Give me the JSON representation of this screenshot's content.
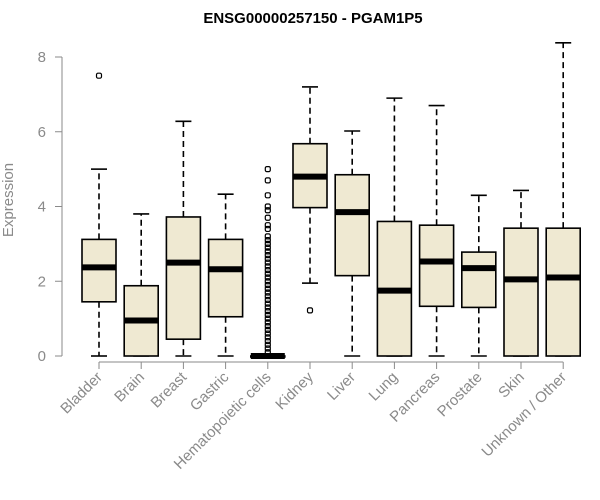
{
  "chart_data": {
    "type": "boxplot",
    "title": "ENSG00000257150 - PGAM1P5",
    "xlabel": "",
    "ylabel": "Expression",
    "ylim": [
      0,
      8.4
    ],
    "yticks": [
      0,
      2,
      4,
      6,
      8
    ],
    "box_color": "#efe9d2",
    "categories": [
      "Bladder",
      "Brain",
      "Breast",
      "Gastric",
      "Hematopoietic cells",
      "Kidney",
      "Liver",
      "Lung",
      "Pancreas",
      "Prostate",
      "Skin",
      "Unknown / Other"
    ],
    "boxes": [
      {
        "min": 0.0,
        "q1": 1.45,
        "median": 2.37,
        "q3": 3.12,
        "max": 5.0,
        "outliers": [
          7.5
        ]
      },
      {
        "min": 0.0,
        "q1": 0.0,
        "median": 0.95,
        "q3": 1.88,
        "max": 3.8,
        "outliers": []
      },
      {
        "min": 0.0,
        "q1": 0.45,
        "median": 2.5,
        "q3": 3.72,
        "max": 6.28,
        "outliers": []
      },
      {
        "min": 0.0,
        "q1": 1.05,
        "median": 2.32,
        "q3": 3.12,
        "max": 4.33,
        "outliers": []
      },
      {
        "min": 0.0,
        "q1": 0.0,
        "median": 0.0,
        "q3": 0.0,
        "max": 0.0,
        "outliers": [
          5.0,
          4.7,
          4.3,
          4.0,
          3.9,
          3.7,
          3.5,
          3.4,
          3.2,
          3.1,
          3.0,
          2.9,
          2.8,
          2.7,
          2.6,
          2.5,
          2.4,
          2.3,
          2.2,
          2.1,
          2.0,
          1.9,
          1.8,
          1.7,
          1.6,
          1.5,
          1.4,
          1.3,
          1.2,
          1.1,
          1.0,
          0.9,
          0.8,
          0.7,
          0.6,
          0.5,
          0.4,
          0.3,
          0.2,
          0.1
        ]
      },
      {
        "min": 1.95,
        "q1": 3.97,
        "median": 4.8,
        "q3": 5.68,
        "max": 7.2,
        "outliers": [
          1.22
        ]
      },
      {
        "min": 0.0,
        "q1": 2.15,
        "median": 3.85,
        "q3": 4.85,
        "max": 6.02,
        "outliers": []
      },
      {
        "min": 0.0,
        "q1": 0.0,
        "median": 1.75,
        "q3": 3.6,
        "max": 6.9,
        "outliers": []
      },
      {
        "min": 0.0,
        "q1": 1.33,
        "median": 2.53,
        "q3": 3.5,
        "max": 6.7,
        "outliers": []
      },
      {
        "min": 0.0,
        "q1": 1.3,
        "median": 2.35,
        "q3": 2.78,
        "max": 4.3,
        "outliers": []
      },
      {
        "min": 0.0,
        "q1": 0.0,
        "median": 2.05,
        "q3": 3.42,
        "max": 4.43,
        "outliers": []
      },
      {
        "min": 0.0,
        "q1": 0.0,
        "median": 2.1,
        "q3": 3.42,
        "max": 8.38,
        "outliers": []
      }
    ]
  }
}
